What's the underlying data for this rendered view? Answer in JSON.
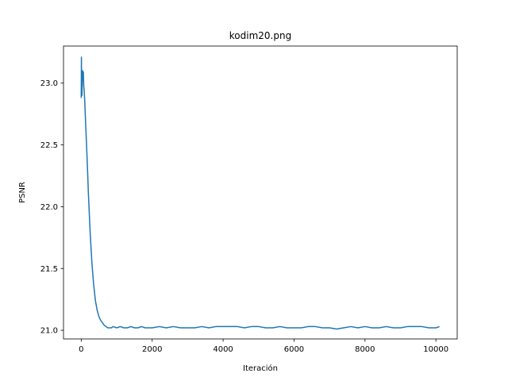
{
  "chart_data": {
    "type": "line",
    "title": "kodim20.png",
    "xlabel": "Iteración",
    "ylabel": "PSNR",
    "xlim": [
      -500,
      10600
    ],
    "ylim": [
      20.93,
      23.3
    ],
    "xticks": [
      0,
      2000,
      4000,
      6000,
      8000,
      10000
    ],
    "xtick_labels": [
      "0",
      "2000",
      "4000",
      "6000",
      "8000",
      "10000"
    ],
    "yticks": [
      21.0,
      21.5,
      22.0,
      22.5,
      23.0
    ],
    "ytick_labels": [
      "21.0",
      "21.5",
      "22.0",
      "22.5",
      "23.0"
    ],
    "grid": false,
    "series": [
      {
        "color": "#1f77b4",
        "x": [
          0,
          5,
          10,
          20,
          30,
          40,
          50,
          60,
          70,
          80,
          100,
          120,
          150,
          180,
          200,
          250,
          300,
          350,
          400,
          450,
          500,
          550,
          600,
          650,
          700,
          750,
          800,
          850,
          900,
          1000,
          1100,
          1200,
          1300,
          1400,
          1500,
          1600,
          1700,
          1800,
          1900,
          2000,
          2200,
          2400,
          2600,
          2800,
          3000,
          3200,
          3400,
          3600,
          3800,
          4000,
          4200,
          4400,
          4600,
          4800,
          5000,
          5200,
          5400,
          5600,
          5800,
          6000,
          6200,
          6400,
          6600,
          6800,
          7000,
          7200,
          7400,
          7600,
          7800,
          8000,
          8200,
          8400,
          8600,
          8800,
          9000,
          9200,
          9400,
          9600,
          9800,
          10000,
          10100
        ],
        "y": [
          22.88,
          23.21,
          22.95,
          22.9,
          23.02,
          23.1,
          23.06,
          23.09,
          22.98,
          22.95,
          22.85,
          22.7,
          22.5,
          22.28,
          22.12,
          21.8,
          21.55,
          21.37,
          21.24,
          21.16,
          21.11,
          21.08,
          21.06,
          21.04,
          21.03,
          21.02,
          21.02,
          21.02,
          21.03,
          21.02,
          21.03,
          21.02,
          21.02,
          21.03,
          21.02,
          21.02,
          21.03,
          21.02,
          21.02,
          21.02,
          21.03,
          21.02,
          21.03,
          21.02,
          21.02,
          21.02,
          21.03,
          21.02,
          21.03,
          21.03,
          21.03,
          21.03,
          21.02,
          21.03,
          21.03,
          21.02,
          21.02,
          21.03,
          21.02,
          21.02,
          21.02,
          21.03,
          21.03,
          21.02,
          21.02,
          21.01,
          21.02,
          21.03,
          21.02,
          21.03,
          21.02,
          21.02,
          21.03,
          21.02,
          21.02,
          21.03,
          21.03,
          21.03,
          21.02,
          21.02,
          21.03
        ]
      }
    ]
  }
}
